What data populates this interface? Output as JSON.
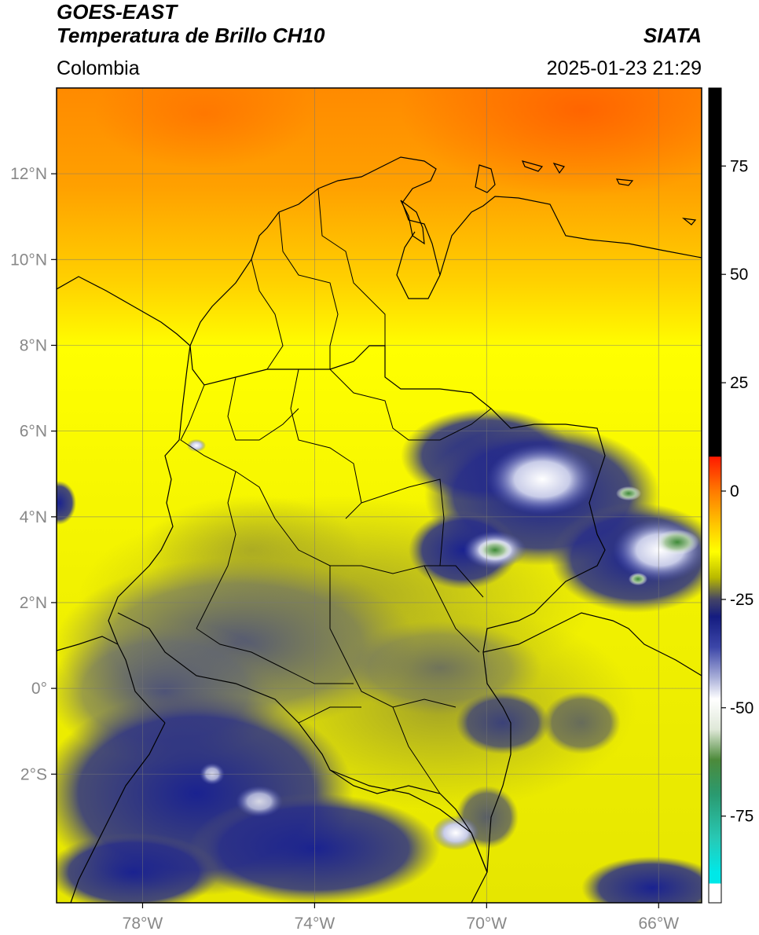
{
  "header": {
    "satellite": "GOES-EAST",
    "product": "Temperatura de Brillo CH10",
    "region": "Colombia",
    "institution": "SIATA",
    "datetime": "2025-01-23 21:29"
  },
  "map": {
    "lon_range": [
      -80.0,
      -65.0
    ],
    "lat_range": [
      -5.0,
      14.0
    ],
    "lon_ticks": [
      {
        "value": -78,
        "label": "78°W"
      },
      {
        "value": -74,
        "label": "74°W"
      },
      {
        "value": -70,
        "label": "70°W"
      },
      {
        "value": -66,
        "label": "66°W"
      }
    ],
    "lat_ticks": [
      {
        "value": 12,
        "label": "12°N"
      },
      {
        "value": 10,
        "label": "10°N"
      },
      {
        "value": 8,
        "label": "8°N"
      },
      {
        "value": 6,
        "label": "6°N"
      },
      {
        "value": 4,
        "label": "4°N"
      },
      {
        "value": 2,
        "label": "2°N"
      },
      {
        "value": 0,
        "label": "0°"
      },
      {
        "value": -2,
        "label": "2°S"
      }
    ],
    "grid": true
  },
  "colorbar": {
    "range": [
      -95,
      93
    ],
    "ticks": [
      {
        "value": 75,
        "label": "75"
      },
      {
        "value": 50,
        "label": "50"
      },
      {
        "value": 25,
        "label": "25"
      },
      {
        "value": 0,
        "label": "0"
      },
      {
        "value": -25,
        "label": "-25"
      },
      {
        "value": -50,
        "label": "-50"
      },
      {
        "value": -75,
        "label": "-75"
      }
    ],
    "stops": [
      {
        "value": 93,
        "color": "#000000"
      },
      {
        "value": 8,
        "color": "#000000"
      },
      {
        "value": 7.9,
        "color": "#ff1a00"
      },
      {
        "value": 0,
        "color": "#ff7a00"
      },
      {
        "value": -8,
        "color": "#ffc800"
      },
      {
        "value": -14,
        "color": "#ffff00"
      },
      {
        "value": -20,
        "color": "#b8b800"
      },
      {
        "value": -25,
        "color": "#444466"
      },
      {
        "value": -29,
        "color": "#141c80"
      },
      {
        "value": -36,
        "color": "#3c46a8"
      },
      {
        "value": -43,
        "color": "#a8aed8"
      },
      {
        "value": -48,
        "color": "#ffffff"
      },
      {
        "value": -55,
        "color": "#dfe8d8"
      },
      {
        "value": -62,
        "color": "#4c8a3a"
      },
      {
        "value": -70,
        "color": "#2a9a70"
      },
      {
        "value": -80,
        "color": "#28c8b4"
      },
      {
        "value": -88,
        "color": "#00e8e8"
      },
      {
        "value": -90.5,
        "color": "#00e8e8"
      },
      {
        "value": -90.6,
        "color": "#ffffff"
      },
      {
        "value": -95,
        "color": "#ffffff"
      }
    ]
  }
}
